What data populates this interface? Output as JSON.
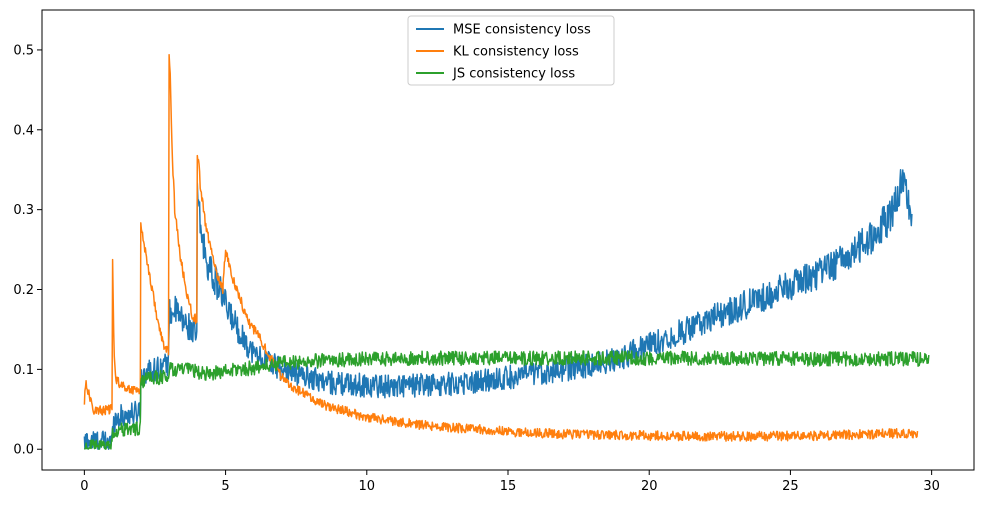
{
  "chart_data": {
    "type": "line",
    "title": "",
    "xlabel": "",
    "ylabel": "",
    "xlim": [
      -1.5,
      31.5
    ],
    "ylim": [
      -0.026,
      0.55
    ],
    "xticks": [
      0,
      5,
      10,
      15,
      20,
      25,
      30
    ],
    "xtick_labels": [
      "0",
      "5",
      "10",
      "15",
      "20",
      "25",
      "30"
    ],
    "yticks": [
      0.0,
      0.1,
      0.2,
      0.3,
      0.4,
      0.5
    ],
    "ytick_labels": [
      "0.0",
      "0.1",
      "0.2",
      "0.3",
      "0.4",
      "0.5"
    ],
    "grid": false,
    "legend_position": "top-center",
    "series": [
      {
        "name": "MSE consistency loss",
        "color": "#1f77b4",
        "x": [
          0,
          0.1,
          0.3,
          0.6,
          0.99,
          1.0,
          1.2,
          1.5,
          1.8,
          1.99,
          2.0,
          2.2,
          2.5,
          2.8,
          2.99,
          3.0,
          3.2,
          3.5,
          3.8,
          3.99,
          4.0,
          4.1,
          4.3,
          4.5,
          4.8,
          5.0,
          5.3,
          5.6,
          6.0,
          6.5,
          7.0,
          7.5,
          8.0,
          8.5,
          9.0,
          10.0,
          11.0,
          12.0,
          13.0,
          14.0,
          15.0,
          16.0,
          17.0,
          18.0,
          19.0,
          20.0,
          21.0,
          22.0,
          23.0,
          24.0,
          25.0,
          26.0,
          27.0,
          28.0,
          28.5,
          28.9,
          29.1,
          29.3
        ],
        "y": [
          0.005,
          0.012,
          0.01,
          0.009,
          0.008,
          0.035,
          0.04,
          0.043,
          0.045,
          0.05,
          0.09,
          0.098,
          0.1,
          0.105,
          0.108,
          0.17,
          0.175,
          0.16,
          0.15,
          0.14,
          0.32,
          0.28,
          0.24,
          0.22,
          0.2,
          0.18,
          0.16,
          0.14,
          0.12,
          0.11,
          0.1,
          0.095,
          0.09,
          0.085,
          0.082,
          0.08,
          0.079,
          0.08,
          0.082,
          0.085,
          0.09,
          0.095,
          0.1,
          0.105,
          0.115,
          0.13,
          0.145,
          0.16,
          0.175,
          0.19,
          0.205,
          0.22,
          0.24,
          0.27,
          0.29,
          0.33,
          0.32,
          0.29
        ],
        "noise": 0.025
      },
      {
        "name": "KL consistency loss",
        "color": "#ff7f0e",
        "x": [
          0,
          0.05,
          0.15,
          0.3,
          0.6,
          0.99,
          1.0,
          1.05,
          1.1,
          1.3,
          1.6,
          1.99,
          2.0,
          2.1,
          2.2,
          2.4,
          2.6,
          2.8,
          2.99,
          3.0,
          3.05,
          3.1,
          3.2,
          3.4,
          3.6,
          3.8,
          3.99,
          4.0,
          4.05,
          4.1,
          4.3,
          4.6,
          4.9,
          5.0,
          5.2,
          5.5,
          5.8,
          6.0,
          6.2,
          6.5,
          7.0,
          7.5,
          8.0,
          8.5,
          9.0,
          10.0,
          11.0,
          12.0,
          13.0,
          14.0,
          15.0,
          17.0,
          20.0,
          23.0,
          26.0,
          28.0,
          29.0,
          29.5
        ],
        "y": [
          0.06,
          0.085,
          0.07,
          0.05,
          0.048,
          0.05,
          0.24,
          0.12,
          0.09,
          0.08,
          0.075,
          0.075,
          0.28,
          0.26,
          0.24,
          0.2,
          0.16,
          0.13,
          0.12,
          0.5,
          0.46,
          0.38,
          0.3,
          0.24,
          0.2,
          0.17,
          0.16,
          0.37,
          0.36,
          0.33,
          0.28,
          0.23,
          0.2,
          0.25,
          0.22,
          0.19,
          0.16,
          0.15,
          0.14,
          0.12,
          0.09,
          0.075,
          0.065,
          0.055,
          0.05,
          0.04,
          0.035,
          0.03,
          0.027,
          0.025,
          0.022,
          0.019,
          0.017,
          0.016,
          0.017,
          0.019,
          0.02,
          0.02
        ],
        "noise": 0.006
      },
      {
        "name": "JS consistency loss",
        "color": "#2ca02c",
        "x": [
          0,
          0.5,
          0.99,
          1.0,
          1.5,
          1.99,
          2.0,
          2.5,
          2.99,
          3.0,
          3.5,
          3.99,
          4.0,
          4.5,
          5.0,
          5.5,
          6.0,
          6.5,
          7.0,
          8.0,
          9.0,
          10.0,
          11.0,
          12.0,
          13.0,
          14.0,
          15.0,
          16.0,
          17.0,
          18.0,
          19.0,
          20.0,
          21.0,
          22.0,
          23.0,
          24.0,
          25.0,
          26.0,
          27.0,
          28.0,
          29.0,
          29.9
        ],
        "y": [
          0.002,
          0.003,
          0.004,
          0.022,
          0.025,
          0.026,
          0.085,
          0.09,
          0.09,
          0.1,
          0.1,
          0.098,
          0.095,
          0.095,
          0.098,
          0.1,
          0.102,
          0.105,
          0.108,
          0.11,
          0.112,
          0.113,
          0.113,
          0.114,
          0.114,
          0.114,
          0.114,
          0.114,
          0.114,
          0.114,
          0.114,
          0.114,
          0.114,
          0.114,
          0.114,
          0.114,
          0.113,
          0.113,
          0.113,
          0.113,
          0.113,
          0.113
        ],
        "noise": 0.009
      }
    ]
  }
}
